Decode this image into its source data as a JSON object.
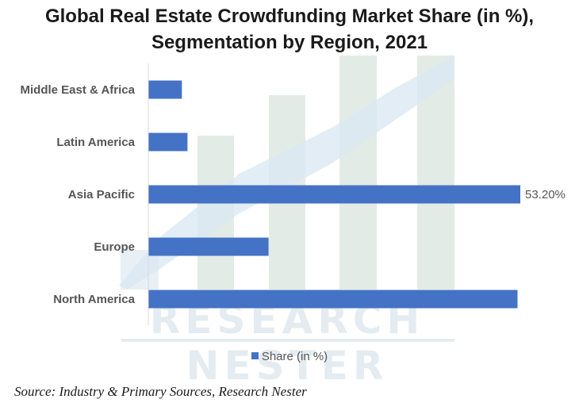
{
  "chart_data": {
    "type": "bar",
    "orientation": "horizontal",
    "title": "Global Real Estate Crowdfunding Market Share (in %), Segmentation by Region, 2021",
    "title_lines": [
      "Global Real Estate Crowdfunding Market Share (in %),",
      "Segmentation by Region, 2021"
    ],
    "categories": [
      "Middle East & Africa",
      "Latin America",
      "Asia Pacific",
      "Europe",
      "North America"
    ],
    "series": [
      {
        "name": "Share (in %)",
        "color": "#4472c4",
        "values": [
          4.8,
          5.6,
          53.2,
          17.2,
          52.8
        ],
        "data_labels": [
          "",
          "",
          "53.20%",
          "",
          ""
        ]
      }
    ],
    "xlim": [
      0,
      53.2
    ],
    "grid": false,
    "legend_position": "bottom"
  },
  "watermark": {
    "line1": "RESEARCH",
    "line2": "NESTER"
  },
  "source": "Source: Industry & Primary Sources, Research Nester"
}
